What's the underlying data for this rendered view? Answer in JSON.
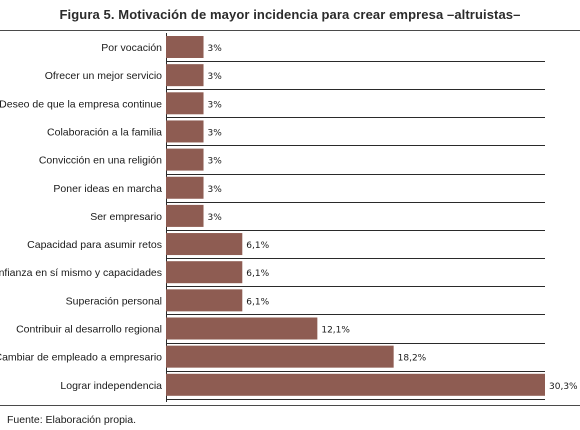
{
  "chart_data": {
    "type": "bar",
    "orientation": "horizontal",
    "title": "Figura 5. Motivación de mayor incidencia para crear empresa –altruistas–",
    "categories": [
      "Por vocación",
      "Ofrecer un mejor servicio",
      "Deseo de que la empresa continue",
      "Colaboración a la familia",
      "Convicción en una religión",
      "Poner ideas en marcha",
      "Ser empresario",
      "Capacidad para asumir retos",
      "Confianza en sí mismo y capacidades",
      "Superación personal",
      "Contribuir al desarrollo regional",
      "Cambiar de empleado a empresario",
      "Lograr independencia"
    ],
    "values": [
      3,
      3,
      3,
      3,
      3,
      3,
      3,
      6.1,
      6.1,
      6.1,
      12.1,
      18.2,
      30.3
    ],
    "value_labels": [
      "3%",
      "3%",
      "3%",
      "3%",
      "3%",
      "3%",
      "3%",
      "6,1%",
      "6,1%",
      "6,1%",
      "12,1%",
      "18,2%",
      "30,3%"
    ],
    "xlim": [
      0,
      30.3
    ],
    "grid": "horizontal",
    "bar_color": "#8e5c52",
    "grid_color": "#2a2a2a"
  },
  "source": "Fuente: Elaboración propia."
}
